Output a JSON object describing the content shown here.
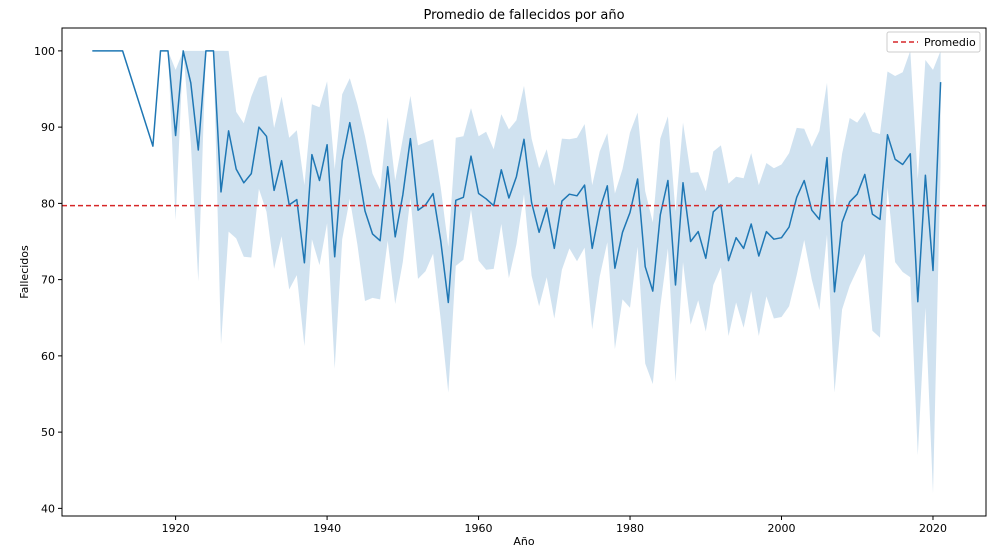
{
  "chart_data": {
    "type": "line",
    "title": "Promedio de fallecidos por año",
    "xlabel": "Año",
    "ylabel": "Fallecidos",
    "xlim": [
      1905,
      2027
    ],
    "ylim": [
      39,
      103
    ],
    "xticks": [
      1920,
      1940,
      1960,
      1980,
      2000,
      2020
    ],
    "yticks": [
      40,
      50,
      60,
      70,
      80,
      90,
      100
    ],
    "grid": false,
    "legend": {
      "placement": "top-right",
      "entries": [
        {
          "label": "Promedio",
          "style": "dashed",
          "color": "#d62728"
        }
      ]
    },
    "reference_line": {
      "label": "Promedio",
      "y": 79.7,
      "color": "#d62728",
      "style": "dashed"
    },
    "colors": {
      "line": "#1f77b4",
      "band": "#a9cbe3"
    },
    "series": [
      {
        "x": [
          1909,
          1913,
          1917,
          1918,
          1919,
          1920,
          1921,
          1922,
          1923,
          1924,
          1925,
          1926,
          1927,
          1928,
          1929,
          1930,
          1931,
          1932,
          1933,
          1934,
          1935,
          1936,
          1937,
          1938,
          1939,
          1940,
          1941,
          1942,
          1943,
          1944,
          1945,
          1946,
          1947,
          1948,
          1949,
          1950,
          1951,
          1952,
          1953,
          1954,
          1955,
          1956,
          1957,
          1958,
          1959,
          1960,
          1961,
          1962,
          1963,
          1964,
          1965,
          1966,
          1967,
          1968,
          1969,
          1970,
          1971,
          1972,
          1973,
          1974,
          1975,
          1976,
          1977,
          1978,
          1979,
          1980,
          1981,
          1982,
          1983,
          1984,
          1985,
          1986,
          1987,
          1988,
          1989,
          1990,
          1991,
          1992,
          1993,
          1994,
          1995,
          1996,
          1997,
          1998,
          1999,
          2000,
          2001,
          2002,
          2003,
          2004,
          2005,
          2006,
          2007,
          2008,
          2009,
          2010,
          2011,
          2012,
          2013,
          2014,
          2015,
          2016,
          2017,
          2018,
          2019,
          2020,
          2021
        ],
        "y": [
          100,
          100,
          87.5,
          100,
          100,
          88.9,
          100,
          95.8,
          87,
          100,
          100,
          81.5,
          89.5,
          84.5,
          82.7,
          83.9,
          90,
          88.8,
          81.7,
          85.6,
          79.8,
          80.5,
          72.2,
          86.4,
          83,
          87.7,
          73,
          85.6,
          90.6,
          85,
          79,
          76,
          75.1,
          84.8,
          75.6,
          81.1,
          88.5,
          79.1,
          79.8,
          81.3,
          75.1,
          67,
          80.4,
          80.8,
          86.2,
          81.3,
          80.6,
          79.7,
          84.4,
          80.7,
          83.5,
          88.4,
          80.1,
          76.2,
          79.4,
          74.1,
          80.3,
          81.2,
          81,
          82.4,
          74.1,
          79.2,
          82.3,
          71.5,
          76.2,
          78.8,
          83.2,
          71.7,
          68.5,
          78.5,
          83,
          69.3,
          82.7,
          75,
          76.3,
          72.8,
          78.9,
          79.8,
          72.5,
          75.5,
          74.1,
          77.3,
          73.1,
          76.3,
          75.3,
          75.5,
          76.9,
          80.8,
          83,
          79.1,
          77.9,
          86,
          68.4,
          77.5,
          80.2,
          81.2,
          83.8,
          78.6,
          77.9,
          89,
          85.8,
          85.1,
          86.5,
          67.1,
          83.7,
          71.2,
          95.9
        ],
        "ci_lower": [
          100,
          100,
          87.5,
          100,
          100,
          77.8,
          100,
          88,
          69.8,
          100,
          100,
          61.5,
          76.3,
          75.4,
          73,
          72.9,
          81.9,
          78.9,
          71.4,
          75.7,
          68.7,
          70.6,
          61.3,
          75.3,
          71.9,
          77.4,
          58.3,
          75.3,
          80.6,
          74.6,
          67.2,
          67.6,
          67.4,
          75.1,
          66.8,
          72.3,
          80.7,
          70.1,
          71.1,
          73.4,
          64.8,
          55.2,
          71.8,
          72.6,
          79.2,
          72.5,
          71.3,
          71.4,
          77.3,
          70.2,
          74.6,
          81.2,
          70.5,
          66.5,
          70.3,
          64.9,
          71.3,
          74.1,
          72.4,
          74.2,
          63.5,
          70.4,
          74.9,
          60.9,
          67.4,
          66.3,
          74.3,
          59,
          56.3,
          66.5,
          74.1,
          56.6,
          72.3,
          64.1,
          67.3,
          63.2,
          69.3,
          71.6,
          62.6,
          67,
          63.7,
          68.5,
          62.6,
          67.8,
          64.9,
          65.1,
          66.5,
          70.6,
          75.2,
          70,
          66,
          75.9,
          55.2,
          66.1,
          69.2,
          71.3,
          73.4,
          63.3,
          62.4,
          82.1,
          72.3,
          71,
          70.3,
          47,
          66.3,
          42,
          85
        ],
        "ci_upper": [
          100,
          100,
          87.5,
          100,
          100,
          97.5,
          100,
          100,
          100,
          100,
          100,
          100,
          100,
          92,
          90.5,
          94,
          96.5,
          96.8,
          89.9,
          94,
          88.6,
          89.6,
          82.4,
          93,
          92.6,
          96,
          84.5,
          94.3,
          96.4,
          93,
          88.8,
          83.9,
          81.8,
          91.3,
          83,
          88.5,
          94.1,
          87.6,
          88,
          88.4,
          82.1,
          74.3,
          88.6,
          88.8,
          92.5,
          88.8,
          89.4,
          87.1,
          91.7,
          89.7,
          90.9,
          95.4,
          88.5,
          84.6,
          87.1,
          82.3,
          88.5,
          88.4,
          88.6,
          90.4,
          82.4,
          86.8,
          89.2,
          81.3,
          84.5,
          89.3,
          91.9,
          81.6,
          77.5,
          88.5,
          91.4,
          78.9,
          90.6,
          84,
          84.1,
          81.6,
          86.8,
          87.6,
          82.6,
          83.5,
          83.3,
          86.6,
          82.4,
          85.3,
          84.6,
          85.1,
          86.6,
          89.9,
          89.8,
          87.4,
          89.5,
          95.8,
          79.3,
          86.5,
          91.2,
          90.6,
          92,
          89.4,
          89.1,
          97.3,
          96.7,
          97.2,
          100,
          83.2,
          98.8,
          97.5,
          100
        ]
      }
    ]
  }
}
